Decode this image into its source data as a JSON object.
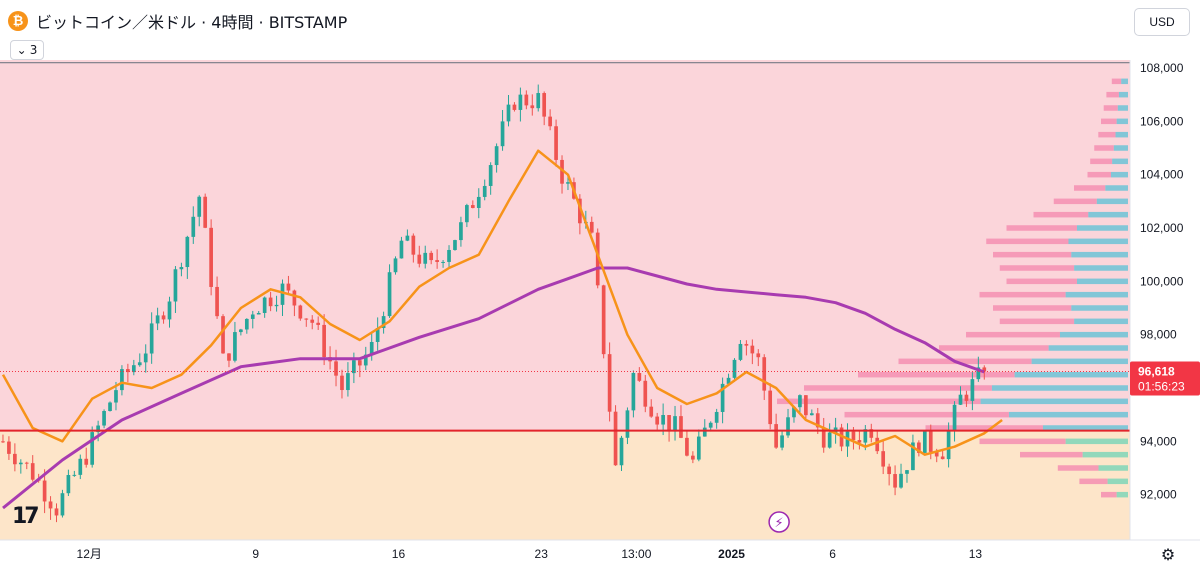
{
  "header": {
    "coin_symbol": "₿",
    "title": "ビットコイン／米ドル · 4時間 · BITSTAMP"
  },
  "collapse_count": "3",
  "currency": "USD",
  "tv_logo": "17",
  "current_price": "96,618",
  "countdown": "01:56:23",
  "colors": {
    "up": "#26a69a",
    "down": "#ef5350",
    "ma_fast": "#f7931a",
    "ma_slow": "#a83bb0",
    "zone_upper": "#fbd5da",
    "zone_lower": "#fde5c9",
    "support_line": "#e3242b",
    "price_tag": "#f23645"
  },
  "chart_data": {
    "type": "candlestick",
    "title": "ビットコイン／米ドル · 4時間 · BITSTAMP",
    "xlabel": "",
    "ylabel": "",
    "ylim": [
      90300,
      108300
    ],
    "y_ticks": [
      "108,000",
      "106,000",
      "104,000",
      "102,000",
      "100,000",
      "98,000",
      "94,000",
      "92,000"
    ],
    "x_ticks": [
      "12月",
      "9",
      "16",
      "23",
      "13:00",
      "2025",
      "6",
      "13"
    ],
    "support_level": 94400,
    "range_top": 108200,
    "last_price": 96618,
    "price_path": [
      [
        0,
        94000
      ],
      [
        5,
        92800
      ],
      [
        9,
        91500
      ],
      [
        14,
        93500
      ],
      [
        19,
        96000
      ],
      [
        24,
        97500
      ],
      [
        28,
        99500
      ],
      [
        33,
        103200
      ],
      [
        37,
        97000
      ],
      [
        42,
        99000
      ],
      [
        47,
        99700
      ],
      [
        52,
        98500
      ],
      [
        57,
        96000
      ],
      [
        62,
        97500
      ],
      [
        67,
        101500
      ],
      [
        72,
        100500
      ],
      [
        77,
        102000
      ],
      [
        82,
        104500
      ],
      [
        86,
        106800
      ],
      [
        90,
        106800
      ],
      [
        94,
        104000
      ],
      [
        99,
        101500
      ],
      [
        101,
        97500
      ],
      [
        103,
        93000
      ],
      [
        106,
        96500
      ],
      [
        110,
        95000
      ],
      [
        113,
        94500
      ],
      [
        116,
        93200
      ],
      [
        120,
        95500
      ],
      [
        124,
        98000
      ],
      [
        127,
        97000
      ],
      [
        130,
        93800
      ],
      [
        134,
        95500
      ],
      [
        138,
        94200
      ],
      [
        142,
        94000
      ],
      [
        146,
        94500
      ],
      [
        150,
        92500
      ],
      [
        154,
        94000
      ],
      [
        158,
        93700
      ],
      [
        161,
        95600
      ],
      [
        165,
        96600
      ]
    ],
    "series": [
      {
        "x": [
          0,
          5,
          10,
          15,
          20,
          25,
          30,
          35,
          40,
          45,
          50,
          55,
          60,
          65,
          70,
          75,
          80,
          85,
          90,
          95,
          100,
          105,
          110,
          115,
          120,
          125,
          130,
          135,
          140,
          145,
          150,
          155,
          160,
          165,
          168
        ],
        "values": [
          96500,
          94500,
          94000,
          95600,
          96200,
          96000,
          96500,
          97600,
          99000,
          99700,
          99400,
          98400,
          97800,
          98500,
          99800,
          100500,
          101000,
          103000,
          104900,
          104000,
          101000,
          98000,
          96000,
          95400,
          95800,
          96600,
          96000,
          94800,
          94300,
          93800,
          94200,
          93500,
          93800,
          94300,
          94800
        ]
      },
      {
        "x": [
          0,
          10,
          20,
          30,
          40,
          50,
          60,
          70,
          80,
          90,
          95,
          100,
          105,
          110,
          115,
          120,
          125,
          130,
          135,
          140,
          145,
          150,
          155,
          160,
          165
        ],
        "values": [
          91500,
          93300,
          94800,
          95800,
          96800,
          97100,
          97100,
          97900,
          98600,
          99700,
          100100,
          100500,
          100500,
          100200,
          99900,
          99700,
          99600,
          99500,
          99400,
          99200,
          98800,
          98200,
          97700,
          97000,
          96600
        ]
      }
    ],
    "volume_profile": [
      [
        92000,
        20
      ],
      [
        92500,
        36
      ],
      [
        93000,
        52
      ],
      [
        93500,
        80
      ],
      [
        94000,
        110
      ],
      [
        94500,
        150
      ],
      [
        95000,
        210
      ],
      [
        95500,
        260
      ],
      [
        96000,
        240
      ],
      [
        96500,
        200
      ],
      [
        97000,
        170
      ],
      [
        97500,
        140
      ],
      [
        98000,
        120
      ],
      [
        98500,
        95
      ],
      [
        99000,
        100
      ],
      [
        99500,
        110
      ],
      [
        100000,
        90
      ],
      [
        100500,
        95
      ],
      [
        101000,
        100
      ],
      [
        101500,
        105
      ],
      [
        102000,
        90
      ],
      [
        102500,
        70
      ],
      [
        103000,
        55
      ],
      [
        103500,
        40
      ],
      [
        104000,
        30
      ],
      [
        104500,
        28
      ],
      [
        105000,
        25
      ],
      [
        105500,
        22
      ],
      [
        106000,
        20
      ],
      [
        106500,
        18
      ],
      [
        107000,
        16
      ],
      [
        107500,
        12
      ]
    ]
  }
}
